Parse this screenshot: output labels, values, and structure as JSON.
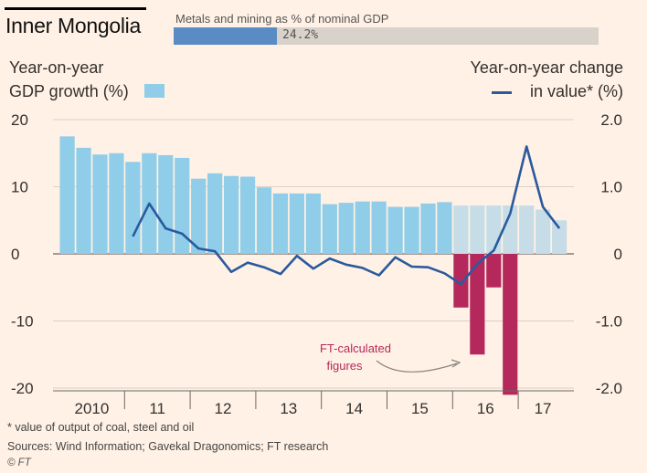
{
  "title": "Inner Mongolia",
  "metals_share": {
    "label": "Metals and mining as % of nominal GDP",
    "value_text": "24.2%",
    "value": 24.2,
    "max": 100,
    "fill_color": "#5a8bc4",
    "track_color": "#d8d2cb"
  },
  "legend": {
    "left_line1": "Year-on-year",
    "left_line2": "GDP growth (%)",
    "right_line1": "Year-on-year change",
    "right_line2": "in value* (%)"
  },
  "chart_data": {
    "type": "bar",
    "x_tick_labels": [
      "2010",
      "11",
      "12",
      "13",
      "14",
      "15",
      "16",
      "17"
    ],
    "y_left": {
      "ticks": [
        20,
        10,
        0,
        -10,
        -20
      ],
      "range": [
        -21,
        20
      ]
    },
    "y_right": {
      "ticks": [
        "2.0",
        "1.0",
        "0",
        "-1.0",
        "-2.0"
      ],
      "range": [
        -2.1,
        2.0
      ]
    },
    "grid": true,
    "colors": {
      "gdp_bar": "#8fcde9",
      "gdp_bar_ft": "#c6dde7",
      "ft_calculated_bar": "#b5285c",
      "value_line": "#2a5a9e",
      "annotation": "#b5285c"
    },
    "series": [
      {
        "name": "GDP growth (%)",
        "axis": "left",
        "kind": "bar",
        "quarters": [
          "2010Q1",
          "2010Q2",
          "2010Q3",
          "2010Q4",
          "2011Q1",
          "2011Q2",
          "2011Q3",
          "2011Q4",
          "2012Q1",
          "2012Q2",
          "2012Q3",
          "2012Q4",
          "2013Q1",
          "2013Q2",
          "2013Q3",
          "2013Q4",
          "2014Q1",
          "2014Q2",
          "2014Q3",
          "2014Q4",
          "2015Q1",
          "2015Q2",
          "2015Q3",
          "2015Q4",
          "2016Q1",
          "2016Q2",
          "2016Q3",
          "2016Q4",
          "2017Q1",
          "2017Q2",
          "2017Q3"
        ],
        "values": [
          17.5,
          15.8,
          14.8,
          15.0,
          13.7,
          15.0,
          14.7,
          14.3,
          11.2,
          12.0,
          11.6,
          11.5,
          9.9,
          9.0,
          9.0,
          9.0,
          7.4,
          7.6,
          7.8,
          7.8,
          7.0,
          7.0,
          7.5,
          7.7,
          7.2,
          7.2,
          7.2,
          7.2,
          7.2,
          6.6,
          5.0
        ],
        "ft_calculated_from_index": 24
      },
      {
        "name": "FT-calculated figures",
        "axis": "left",
        "kind": "bar",
        "quarters": [
          "2016Q1",
          "2016Q2",
          "2016Q3",
          "2016Q4"
        ],
        "values": [
          -8.0,
          -15.0,
          -5.0,
          -21.0
        ]
      },
      {
        "name": "in value* (%)",
        "axis": "right",
        "kind": "line",
        "quarters": [
          "2011Q1",
          "2011Q2",
          "2011Q3",
          "2011Q4",
          "2012Q1",
          "2012Q2",
          "2012Q3",
          "2012Q4",
          "2013Q1",
          "2013Q2",
          "2013Q3",
          "2013Q4",
          "2014Q1",
          "2014Q2",
          "2014Q3",
          "2014Q4",
          "2015Q1",
          "2015Q2",
          "2015Q3",
          "2015Q4",
          "2016Q1",
          "2016Q2",
          "2016Q3",
          "2016Q4",
          "2017Q1",
          "2017Q2",
          "2017Q3"
        ],
        "values": [
          0.26,
          0.75,
          0.38,
          0.3,
          0.08,
          0.04,
          -0.27,
          -0.13,
          -0.2,
          -0.3,
          -0.03,
          -0.22,
          -0.07,
          -0.16,
          -0.21,
          -0.32,
          -0.05,
          -0.19,
          -0.2,
          -0.29,
          -0.45,
          -0.15,
          0.05,
          0.6,
          1.6,
          0.7,
          0.38
        ]
      }
    ],
    "annotation": {
      "line1": "FT-calculated",
      "line2": "figures"
    }
  },
  "footnote": "* value of output of coal, steel and oil",
  "sources": "Sources: Wind Information; Gavekal Dragonomics; FT research",
  "credit": "© FT"
}
